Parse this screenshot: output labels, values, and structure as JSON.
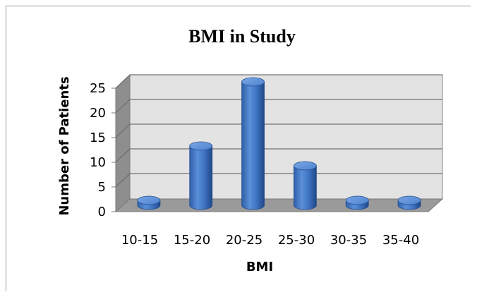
{
  "chart_data": {
    "type": "bar",
    "title": "BMI in Study",
    "xlabel": "BMI",
    "ylabel": "Number of Patients",
    "categories": [
      "10-15",
      "15-20",
      "20-25",
      "25-30",
      "30-35",
      "35-40"
    ],
    "values": [
      1,
      12,
      25,
      8,
      1,
      1
    ],
    "ylim": [
      0,
      25
    ],
    "yticks": [
      "0",
      "5",
      "10",
      "15",
      "20",
      "25"
    ],
    "grid": true,
    "legend": "none",
    "bar_color": "#3f74c4"
  }
}
